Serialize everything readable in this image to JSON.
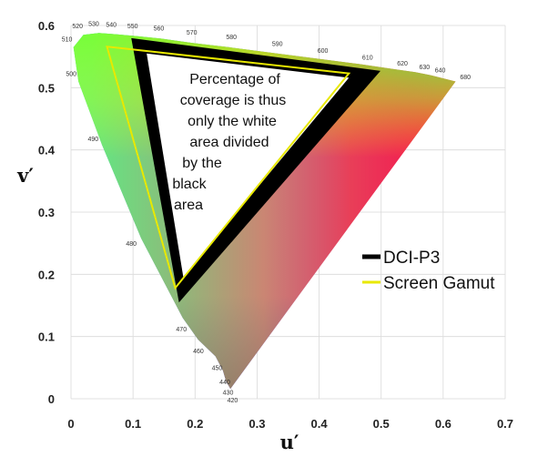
{
  "chart_data": {
    "type": "scatter",
    "xlabel": "u′",
    "ylabel": "v′",
    "xlim": [
      0,
      0.7
    ],
    "ylim": [
      0,
      0.6
    ],
    "x_ticks": [
      "0",
      "0.1",
      "0.2",
      "0.3",
      "0.4",
      "0.5",
      "0.6",
      "0.7"
    ],
    "y_ticks": [
      "0",
      "0.1",
      "0.2",
      "0.3",
      "0.4",
      "0.5",
      "0.6"
    ],
    "grid": true,
    "legend_position": "right",
    "spectral_locus": [
      {
        "nm": "420",
        "u": 0.257,
        "v": 0.016
      },
      {
        "nm": "430",
        "u": 0.25,
        "v": 0.028
      },
      {
        "nm": "440",
        "u": 0.245,
        "v": 0.045
      },
      {
        "nm": "450",
        "u": 0.233,
        "v": 0.068
      },
      {
        "nm": "460",
        "u": 0.205,
        "v": 0.095
      },
      {
        "nm": "470",
        "u": 0.18,
        "v": 0.13
      },
      {
        "nm": "480",
        "u": 0.113,
        "v": 0.258
      },
      {
        "nm": "490",
        "u": 0.05,
        "v": 0.408
      },
      {
        "nm": "500",
        "u": 0.012,
        "v": 0.51
      },
      {
        "nm": "510",
        "u": 0.004,
        "v": 0.565
      },
      {
        "nm": "520",
        "u": 0.02,
        "v": 0.585
      },
      {
        "nm": "530",
        "u": 0.045,
        "v": 0.588
      },
      {
        "nm": "540",
        "u": 0.072,
        "v": 0.586
      },
      {
        "nm": "550",
        "u": 0.105,
        "v": 0.583
      },
      {
        "nm": "560",
        "u": 0.145,
        "v": 0.579
      },
      {
        "nm": "570",
        "u": 0.195,
        "v": 0.572
      },
      {
        "nm": "580",
        "u": 0.255,
        "v": 0.565
      },
      {
        "nm": "590",
        "u": 0.325,
        "v": 0.556
      },
      {
        "nm": "600",
        "u": 0.395,
        "v": 0.547
      },
      {
        "nm": "610",
        "u": 0.465,
        "v": 0.538
      },
      {
        "nm": "620",
        "u": 0.52,
        "v": 0.53
      },
      {
        "nm": "630",
        "u": 0.555,
        "v": 0.525
      },
      {
        "nm": "640",
        "u": 0.58,
        "v": 0.52
      },
      {
        "nm": "680",
        "u": 0.62,
        "v": 0.51
      }
    ],
    "series": [
      {
        "name": "DCI-P3",
        "color": "#000000",
        "points": [
          {
            "u": 0.496,
            "v": 0.526
          },
          {
            "u": 0.099,
            "v": 0.578
          },
          {
            "u": 0.175,
            "v": 0.158
          }
        ]
      },
      {
        "name": "Screen Gamut",
        "color": "#e8e800",
        "points": [
          {
            "u": 0.448,
            "v": 0.523
          },
          {
            "u": 0.058,
            "v": 0.566
          },
          {
            "u": 0.168,
            "v": 0.178
          }
        ]
      }
    ],
    "white_area": [
      {
        "u": 0.448,
        "v": 0.516
      },
      {
        "u": 0.122,
        "v": 0.555
      },
      {
        "u": 0.181,
        "v": 0.196
      }
    ],
    "annotation": [
      "Percentage of",
      "coverage is thus",
      "only the white",
      "area divided",
      "by the",
      "black",
      "area"
    ],
    "legend": [
      {
        "label": "DCI-P3",
        "color": "#000000"
      },
      {
        "label": "Screen Gamut",
        "color": "#e8e800"
      }
    ]
  }
}
